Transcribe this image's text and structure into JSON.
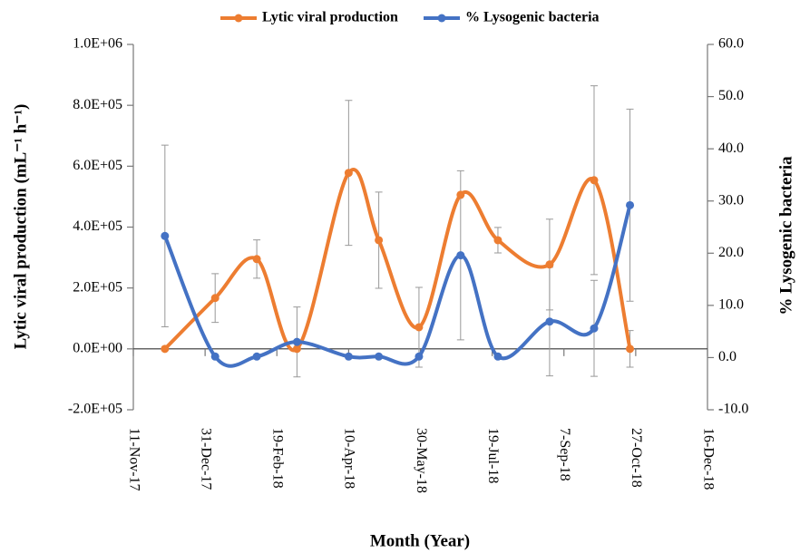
{
  "chart_data": {
    "type": "line",
    "xlabel": "Month (Year)",
    "ylabel": "Lytic viral production (mL⁻¹ h⁻¹)",
    "y2label": "% Lysogenic bacteria",
    "x": [
      "2017-12-03",
      "2018-01-07",
      "2018-02-05",
      "2018-03-05",
      "2018-04-10",
      "2018-05-01",
      "2018-05-29",
      "2018-06-27",
      "2018-07-23",
      "2018-08-28",
      "2018-09-28",
      "2018-10-23"
    ],
    "series": [
      {
        "name": "Lytic viral production",
        "color": "#ED7D31",
        "values": [
          0,
          167000,
          295000,
          0,
          578000,
          357000,
          71000,
          506000,
          357000,
          277000,
          554000,
          0
        ],
        "errors": [
          null,
          80000,
          63000,
          null,
          238000,
          158000,
          131000,
          null,
          42000,
          149000,
          310000,
          60000
        ]
      },
      {
        "name": "% Lysogenic bacteria",
        "color": "#4472C4",
        "axis": "y2",
        "values": [
          23.3,
          0.2,
          0.2,
          3.0,
          0.2,
          0.2,
          0.2,
          19.6,
          0.2,
          6.9,
          5.6,
          29.2
        ],
        "errors": [
          17.4,
          null,
          null,
          6.7,
          null,
          null,
          null,
          16.2,
          null,
          10.4,
          9.2,
          18.4
        ]
      }
    ],
    "xlim": [
      "2017-11-11",
      "2018-12-16"
    ],
    "xticks": [
      {
        "value": "2017-11-11",
        "label": "11-Nov-17"
      },
      {
        "value": "2017-12-31",
        "label": "31-Dec-17"
      },
      {
        "value": "2018-02-19",
        "label": "19-Feb-18"
      },
      {
        "value": "2018-04-10",
        "label": "10-Apr-18"
      },
      {
        "value": "2018-05-30",
        "label": "30-May-18"
      },
      {
        "value": "2018-07-19",
        "label": "19-Jul-18"
      },
      {
        "value": "2018-09-07",
        "label": "7-Sep-18"
      },
      {
        "value": "2018-10-27",
        "label": "27-Oct-18"
      },
      {
        "value": "2018-12-16",
        "label": "16-Dec-18"
      }
    ],
    "ylim": [
      -200000,
      1000000
    ],
    "yticks": [
      {
        "value": -200000,
        "label": "-2.0E+05"
      },
      {
        "value": 0,
        "label": "0.0E+00"
      },
      {
        "value": 200000,
        "label": "2.0E+05"
      },
      {
        "value": 400000,
        "label": "4.0E+05"
      },
      {
        "value": 600000,
        "label": "6.0E+05"
      },
      {
        "value": 800000,
        "label": "8.0E+05"
      },
      {
        "value": 1000000,
        "label": "1.0E+06"
      }
    ],
    "y2lim": [
      -10,
      60
    ],
    "y2ticks": [
      {
        "value": -10,
        "label": "-10.0"
      },
      {
        "value": 0,
        "label": "0.0"
      },
      {
        "value": 10,
        "label": "10.0"
      },
      {
        "value": 20,
        "label": "20.0"
      },
      {
        "value": 30,
        "label": "30.0"
      },
      {
        "value": 40,
        "label": "40.0"
      },
      {
        "value": 50,
        "label": "50.0"
      },
      {
        "value": 60,
        "label": "60.0"
      }
    ],
    "legend": "top"
  }
}
